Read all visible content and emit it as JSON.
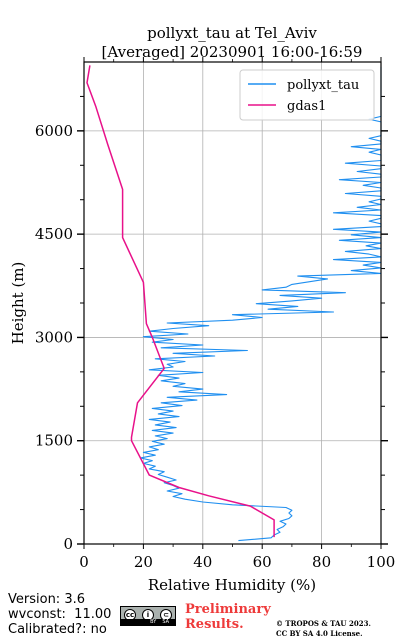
{
  "chart_data": {
    "type": "line",
    "title_line1": "pollyxt_tau at Tel_Aviv",
    "title_line2": "[Averaged] 20230901 16:00-16:59",
    "xlabel": "Relative Humidity (%)",
    "ylabel": "Height (m)",
    "xlim": [
      0,
      100
    ],
    "ylim": [
      0,
      7000
    ],
    "x_ticks": [
      "0",
      "20",
      "40",
      "60",
      "80",
      "100"
    ],
    "y_ticks": [
      "0",
      "1500",
      "3000",
      "4500",
      "6000"
    ],
    "grid": true,
    "legend_position": "top-right",
    "series": [
      {
        "name": "pollyxt_tau",
        "color": "#1f8ff0",
        "note": "noisy lidar profile; each entry is [height_m, rh_percent]",
        "points": [
          [
            50,
            52
          ],
          [
            90,
            63
          ],
          [
            130,
            64
          ],
          [
            170,
            66
          ],
          [
            210,
            65
          ],
          [
            250,
            67
          ],
          [
            290,
            68
          ],
          [
            330,
            66
          ],
          [
            370,
            69
          ],
          [
            410,
            70
          ],
          [
            450,
            69
          ],
          [
            490,
            70
          ],
          [
            530,
            68
          ],
          [
            570,
            50
          ],
          [
            610,
            40
          ],
          [
            650,
            34
          ],
          [
            690,
            30
          ],
          [
            730,
            33
          ],
          [
            770,
            28
          ],
          [
            810,
            32
          ],
          [
            850,
            30
          ],
          [
            890,
            27
          ],
          [
            930,
            31
          ],
          [
            970,
            28
          ],
          [
            1010,
            25
          ],
          [
            1050,
            27
          ],
          [
            1090,
            22
          ],
          [
            1130,
            24
          ],
          [
            1170,
            20
          ],
          [
            1210,
            23
          ],
          [
            1250,
            19
          ],
          [
            1290,
            24
          ],
          [
            1330,
            20
          ],
          [
            1370,
            25
          ],
          [
            1410,
            22
          ],
          [
            1450,
            27
          ],
          [
            1490,
            23
          ],
          [
            1530,
            28
          ],
          [
            1570,
            24
          ],
          [
            1610,
            30
          ],
          [
            1650,
            23
          ],
          [
            1690,
            31
          ],
          [
            1730,
            24
          ],
          [
            1770,
            29
          ],
          [
            1810,
            22
          ],
          [
            1850,
            32
          ],
          [
            1890,
            25
          ],
          [
            1930,
            30
          ],
          [
            1970,
            23
          ],
          [
            2010,
            33
          ],
          [
            2050,
            26
          ],
          [
            2090,
            38
          ],
          [
            2130,
            28
          ],
          [
            2170,
            48
          ],
          [
            2210,
            32
          ],
          [
            2250,
            40
          ],
          [
            2290,
            30
          ],
          [
            2330,
            34
          ],
          [
            2370,
            26
          ],
          [
            2410,
            32
          ],
          [
            2450,
            25
          ],
          [
            2490,
            40
          ],
          [
            2530,
            22
          ],
          [
            2570,
            30
          ],
          [
            2610,
            28
          ],
          [
            2650,
            34
          ],
          [
            2690,
            24
          ],
          [
            2730,
            44
          ],
          [
            2770,
            30
          ],
          [
            2810,
            55
          ],
          [
            2850,
            26
          ],
          [
            2890,
            40
          ],
          [
            2930,
            23
          ],
          [
            2970,
            30
          ],
          [
            3010,
            20
          ],
          [
            3050,
            35
          ],
          [
            3090,
            22
          ],
          [
            3130,
            30
          ],
          [
            3170,
            42
          ],
          [
            3210,
            28
          ],
          [
            3250,
            50
          ],
          [
            3290,
            60
          ],
          [
            3330,
            50
          ],
          [
            3370,
            84
          ],
          [
            3410,
            62
          ],
          [
            3450,
            72
          ],
          [
            3490,
            58
          ],
          [
            3530,
            70
          ],
          [
            3570,
            80
          ],
          [
            3610,
            66
          ],
          [
            3650,
            88
          ],
          [
            3690,
            60
          ],
          [
            3730,
            68
          ],
          [
            3770,
            70
          ],
          [
            3810,
            76
          ],
          [
            3850,
            82
          ],
          [
            3890,
            72
          ],
          [
            3930,
            100
          ],
          [
            3970,
            90
          ],
          [
            4010,
            100
          ],
          [
            4050,
            94
          ],
          [
            4090,
            100
          ],
          [
            4130,
            84
          ],
          [
            4170,
            100
          ],
          [
            4210,
            96
          ],
          [
            4250,
            88
          ],
          [
            4290,
            100
          ],
          [
            4330,
            95
          ],
          [
            4370,
            100
          ],
          [
            4410,
            86
          ],
          [
            4450,
            100
          ],
          [
            4490,
            90
          ],
          [
            4530,
            100
          ],
          [
            4570,
            84
          ],
          [
            4610,
            100
          ],
          [
            4650,
            100
          ],
          [
            4690,
            96
          ],
          [
            4730,
            100
          ],
          [
            4770,
            100
          ],
          [
            4810,
            84
          ],
          [
            4850,
            100
          ],
          [
            4890,
            92
          ],
          [
            4930,
            100
          ],
          [
            4970,
            96
          ],
          [
            5010,
            100
          ],
          [
            5050,
            100
          ],
          [
            5090,
            88
          ],
          [
            5130,
            100
          ],
          [
            5170,
            100
          ],
          [
            5210,
            94
          ],
          [
            5250,
            100
          ],
          [
            5290,
            86
          ],
          [
            5330,
            100
          ],
          [
            5370,
            100
          ],
          [
            5410,
            92
          ],
          [
            5450,
            100
          ],
          [
            5490,
            100
          ],
          [
            5530,
            88
          ],
          [
            5570,
            100
          ],
          [
            5610,
            100
          ],
          [
            5650,
            100
          ],
          [
            5690,
            96
          ],
          [
            5730,
            100
          ],
          [
            5770,
            90
          ],
          [
            5810,
            100
          ],
          [
            5850,
            100
          ],
          [
            5890,
            96
          ],
          [
            5930,
            100
          ],
          [
            5970,
            100
          ],
          [
            6010,
            100
          ],
          [
            6050,
            100
          ],
          [
            6090,
            100
          ],
          [
            6130,
            100
          ],
          [
            6170,
            96
          ],
          [
            6210,
            100
          ],
          [
            6250,
            100
          ],
          [
            6290,
            100
          ],
          [
            6330,
            100
          ],
          [
            6370,
            100
          ],
          [
            6410,
            100
          ],
          [
            6450,
            100
          ],
          [
            6490,
            100
          ],
          [
            6530,
            100
          ],
          [
            6570,
            100
          ],
          [
            6610,
            100
          ],
          [
            6650,
            100
          ],
          [
            6690,
            100
          ],
          [
            6730,
            100
          ],
          [
            6770,
            100
          ],
          [
            6810,
            100
          ],
          [
            6850,
            100
          ],
          [
            6890,
            100
          ],
          [
            6930,
            100
          ]
        ]
      },
      {
        "name": "gdas1",
        "color": "#e8118a",
        "note": "each entry is [height_m, rh_percent]",
        "points": [
          [
            100,
            64
          ],
          [
            350,
            64
          ],
          [
            550,
            56
          ],
          [
            700,
            42
          ],
          [
            820,
            32
          ],
          [
            1000,
            22
          ],
          [
            1500,
            16
          ],
          [
            1550,
            16
          ],
          [
            2050,
            18
          ],
          [
            2550,
            27
          ],
          [
            3000,
            23
          ],
          [
            3200,
            21
          ],
          [
            3800,
            20
          ],
          [
            4450,
            13
          ],
          [
            5150,
            13
          ],
          [
            5800,
            8
          ],
          [
            6350,
            4
          ],
          [
            6700,
            1
          ],
          [
            6950,
            2
          ]
        ]
      }
    ]
  },
  "footer": {
    "version": "Version: 3.6",
    "wvconst": "wvconst:  11.00",
    "calibrated": "Calibrated?: no",
    "preliminary_line1": "Preliminary",
    "preliminary_line2": "Results.",
    "copyright_line1": "© TROPOS & TAU 2023.",
    "copyright_line2": "CC BY SA 4.0 License.",
    "cc_by": "BY",
    "cc_sa": "SA",
    "cc_icon": "creative-commons-icon",
    "cc_cc": "cc",
    "cc_person": "i",
    "cc_share": "⊂"
  }
}
